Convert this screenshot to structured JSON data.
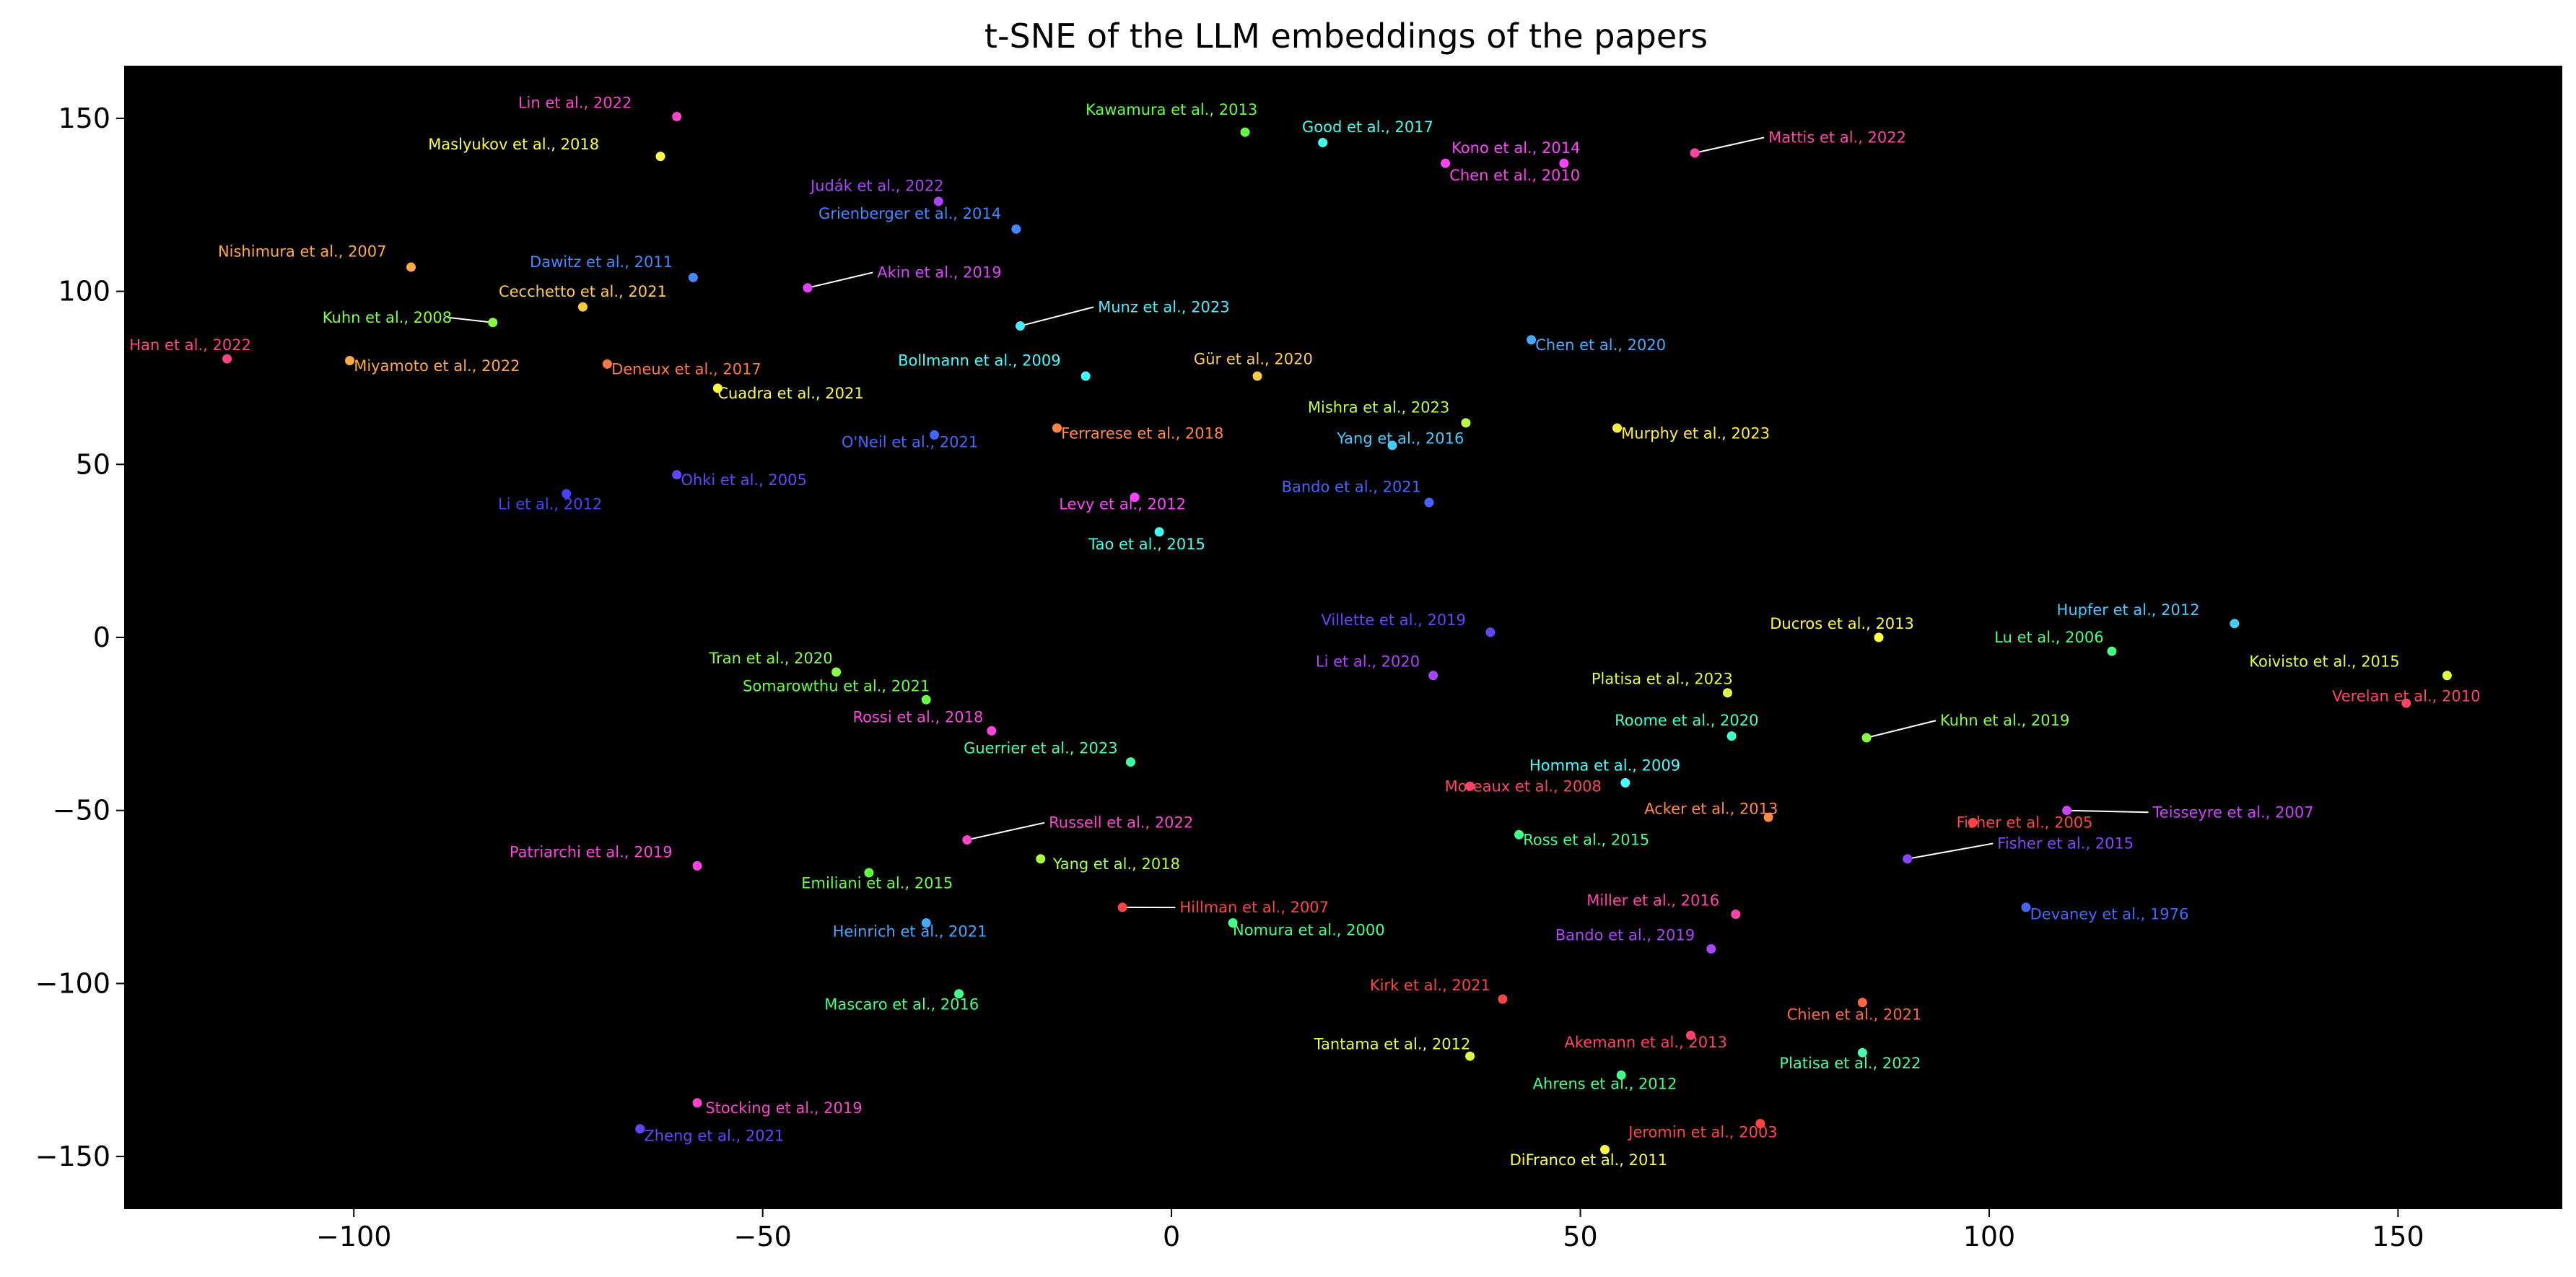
{
  "chart_data": {
    "type": "scatter",
    "title": "t-SNE of the LLM embeddings of the papers",
    "xlabel": "",
    "ylabel": "",
    "xlim": [
      -128,
      170
    ],
    "ylim": [
      -165,
      165
    ],
    "xticks": [
      -100,
      -50,
      0,
      50,
      100,
      150
    ],
    "yticks": [
      150,
      100,
      50,
      0,
      -50,
      -100,
      -150
    ],
    "xtick_labels": [
      "−100",
      "−50",
      "0",
      "50",
      "100",
      "150"
    ],
    "ytick_labels": [
      "150",
      "100",
      "50",
      "0",
      "−50",
      "−100",
      "−150"
    ],
    "background": "#000000",
    "grid": false,
    "points": [
      {
        "label": "Lin et al., 2022",
        "x": -60.5,
        "y": 150.5,
        "color": "#ff44cc",
        "lx": -66,
        "ly": 153,
        "anchor": "end"
      },
      {
        "label": "Maslyukov et al., 2018",
        "x": -62.5,
        "y": 139,
        "color": "#ffff44",
        "lx": -70,
        "ly": 141,
        "anchor": "end"
      },
      {
        "label": "Kawamura et al., 2013",
        "x": 9,
        "y": 146,
        "color": "#66ff44",
        "lx": 0,
        "ly": 151,
        "anchor": "middle"
      },
      {
        "label": "Good et al., 2017",
        "x": 18.5,
        "y": 143,
        "color": "#44ffee",
        "lx": 24,
        "ly": 146,
        "anchor": "middle"
      },
      {
        "label": "Kono et al., 2014",
        "x": 48,
        "y": 137,
        "color": "#ff44ff",
        "lx": 50,
        "ly": 140,
        "anchor": "end"
      },
      {
        "label": "Chen et al., 2010",
        "x": 33.5,
        "y": 137,
        "color": "#ff44ee",
        "lx": 34,
        "ly": 132,
        "anchor": "start"
      },
      {
        "label": "Mattis et al., 2022",
        "x": 64,
        "y": 140,
        "color": "#ff44aa",
        "lx": 73,
        "ly": 143,
        "anchor": "start",
        "leader": true
      },
      {
        "label": "Judák et al., 2022",
        "x": -28.5,
        "y": 126,
        "color": "#aa44ff",
        "lx": -36,
        "ly": 129,
        "anchor": "middle"
      },
      {
        "label": "Grienberger et al., 2014",
        "x": -19,
        "y": 118,
        "color": "#4488ff",
        "lx": -32,
        "ly": 121,
        "anchor": "middle"
      },
      {
        "label": "Nishimura et al., 2007",
        "x": -93,
        "y": 107,
        "color": "#ffaa44",
        "lx": -96,
        "ly": 110,
        "anchor": "end"
      },
      {
        "label": "Dawitz et al., 2011",
        "x": -58.5,
        "y": 104,
        "color": "#4488ff",
        "lx": -61,
        "ly": 107,
        "anchor": "end"
      },
      {
        "label": "Akin et al., 2019",
        "x": -44.5,
        "y": 101,
        "color": "#dd44ff",
        "lx": -36,
        "ly": 104,
        "anchor": "start",
        "leader": true
      },
      {
        "label": "Cecchetto et al., 2021",
        "x": -72,
        "y": 95.5,
        "color": "#ffcc44",
        "lx": -72,
        "ly": 98.5,
        "anchor": "middle"
      },
      {
        "label": "Kuhn et al., 2008",
        "x": -83,
        "y": 91,
        "color": "#88ff44",
        "lx": -88,
        "ly": 91,
        "anchor": "end",
        "leader": true
      },
      {
        "label": "Munz et al., 2023",
        "x": -18.5,
        "y": 90,
        "color": "#44eeff",
        "lx": -9,
        "ly": 94,
        "anchor": "start",
        "leader": true
      },
      {
        "label": "Han et al., 2022",
        "x": -115.5,
        "y": 80.5,
        "color": "#ff4488",
        "lx": -120,
        "ly": 83,
        "anchor": "middle"
      },
      {
        "label": "Miyamoto et al., 2022",
        "x": -100.5,
        "y": 80,
        "color": "#ffaa44",
        "lx": -100,
        "ly": 77,
        "anchor": "start"
      },
      {
        "label": "Deneux et al., 2017",
        "x": -69,
        "y": 79,
        "color": "#ff7744",
        "lx": -68.5,
        "ly": 76,
        "anchor": "start"
      },
      {
        "label": "Chen et al., 2020",
        "x": 44,
        "y": 86,
        "color": "#44aaff",
        "lx": 44.5,
        "ly": 83,
        "anchor": "start"
      },
      {
        "label": "Bollmann et al., 2009",
        "x": -10.5,
        "y": 75.5,
        "color": "#44ffff",
        "lx": -23.5,
        "ly": 78.5,
        "anchor": "middle"
      },
      {
        "label": "Gür et al., 2020",
        "x": 10.5,
        "y": 75.5,
        "color": "#ffcc44",
        "lx": 10,
        "ly": 79,
        "anchor": "middle"
      },
      {
        "label": "Cuadra et al., 2021",
        "x": -55.5,
        "y": 72,
        "color": "#ffff44",
        "lx": -55.5,
        "ly": 69,
        "anchor": "start"
      },
      {
        "label": "Mishra et al., 2023",
        "x": 36,
        "y": 62,
        "color": "#bbff44",
        "lx": 34,
        "ly": 65,
        "anchor": "end"
      },
      {
        "label": "Murphy et al., 2023",
        "x": 54.5,
        "y": 60.5,
        "color": "#ffee44",
        "lx": 55,
        "ly": 57.5,
        "anchor": "start"
      },
      {
        "label": "Ferrarese et al., 2018",
        "x": -14,
        "y": 60.5,
        "color": "#ff8844",
        "lx": -13.5,
        "ly": 57.5,
        "anchor": "start"
      },
      {
        "label": "O'Neil et al., 2021",
        "x": -29,
        "y": 58.5,
        "color": "#4466ff",
        "lx": -32,
        "ly": 55,
        "anchor": "middle"
      },
      {
        "label": "Yang et al., 2016",
        "x": 27,
        "y": 55.5,
        "color": "#44ccff",
        "lx": 28,
        "ly": 56,
        "anchor": "middle"
      },
      {
        "label": "Ohki et al., 2005",
        "x": -60.5,
        "y": 47,
        "color": "#6644ff",
        "lx": -60,
        "ly": 44,
        "anchor": "start"
      },
      {
        "label": "Li et al., 2012",
        "x": -74,
        "y": 41.5,
        "color": "#4444ff",
        "lx": -76,
        "ly": 37,
        "anchor": "middle"
      },
      {
        "label": "Levy et al., 2012",
        "x": -4.5,
        "y": 40.5,
        "color": "#ff44ff",
        "lx": -6,
        "ly": 37,
        "anchor": "middle"
      },
      {
        "label": "Bando et al., 2021",
        "x": 31.5,
        "y": 39,
        "color": "#4466ff",
        "lx": 22,
        "ly": 42,
        "anchor": "middle"
      },
      {
        "label": "Tao et al., 2015",
        "x": -1.5,
        "y": 30.5,
        "color": "#44ffee",
        "lx": -3,
        "ly": 25.5,
        "anchor": "middle"
      },
      {
        "label": "Villette et al., 2019",
        "x": 39,
        "y": 1.5,
        "color": "#6644ff",
        "lx": 36,
        "ly": 3.5,
        "anchor": "end"
      },
      {
        "label": "Hupfer et al., 2012",
        "x": 130,
        "y": 4,
        "color": "#44ccff",
        "lx": 117,
        "ly": 6.5,
        "anchor": "middle"
      },
      {
        "label": "Ducros et al., 2013",
        "x": 86.5,
        "y": 0,
        "color": "#ffff44",
        "lx": 82,
        "ly": 2.5,
        "anchor": "middle"
      },
      {
        "label": "Lu et al., 2006",
        "x": 115,
        "y": -4,
        "color": "#44ff88",
        "lx": 114,
        "ly": -1.5,
        "anchor": "end"
      },
      {
        "label": "Koivisto et al., 2015",
        "x": 156,
        "y": -11,
        "color": "#ddff44",
        "lx": 141,
        "ly": -8.5,
        "anchor": "middle"
      },
      {
        "label": "Tran et al., 2020",
        "x": -41,
        "y": -10,
        "color": "#88ff44",
        "lx": -49,
        "ly": -7.5,
        "anchor": "middle"
      },
      {
        "label": "Li et al., 2020",
        "x": 32,
        "y": -11,
        "color": "#aa44ff",
        "lx": 24,
        "ly": -8.5,
        "anchor": "middle"
      },
      {
        "label": "Platisa et al., 2023",
        "x": 68,
        "y": -16,
        "color": "#ddff44",
        "lx": 60,
        "ly": -13.5,
        "anchor": "middle"
      },
      {
        "label": "Somarowthu et al., 2021",
        "x": -30,
        "y": -18,
        "color": "#66ff44",
        "lx": -41,
        "ly": -15.5,
        "anchor": "middle"
      },
      {
        "label": "Verelan et al., 2010",
        "x": 151,
        "y": -19,
        "color": "#ff4466",
        "lx": 151,
        "ly": -18.5,
        "anchor": "middle"
      },
      {
        "label": "Rossi et al., 2018",
        "x": -22,
        "y": -27,
        "color": "#ff44dd",
        "lx": -31,
        "ly": -24.5,
        "anchor": "middle"
      },
      {
        "label": "Roome et al., 2020",
        "x": 68.5,
        "y": -28.5,
        "color": "#44ffcc",
        "lx": 63,
        "ly": -25.5,
        "anchor": "middle"
      },
      {
        "label": "Kuhn et al., 2019",
        "x": 85,
        "y": -29,
        "color": "#88ff44",
        "lx": 94,
        "ly": -25.5,
        "anchor": "start",
        "leader": true
      },
      {
        "label": "Guerrier et al., 2023",
        "x": -5,
        "y": -36,
        "color": "#44ffaa",
        "lx": -16,
        "ly": -33.5,
        "anchor": "middle"
      },
      {
        "label": "Homma et al., 2009",
        "x": 55.5,
        "y": -42,
        "color": "#44ffff",
        "lx": 53,
        "ly": -38.5,
        "anchor": "middle"
      },
      {
        "label": "Moreaux et al., 2008",
        "x": 36.5,
        "y": -43,
        "color": "#ff4466",
        "lx": 43,
        "ly": -44.5,
        "anchor": "middle"
      },
      {
        "label": "Teisseyre et al., 2007",
        "x": 109.5,
        "y": -50,
        "color": "#cc44ff",
        "lx": 120,
        "ly": -52,
        "anchor": "start",
        "leader": true
      },
      {
        "label": "Acker et al., 2013",
        "x": 73,
        "y": -52,
        "color": "#ff8844",
        "lx": 66,
        "ly": -51,
        "anchor": "middle"
      },
      {
        "label": "Fisher et al., 2005",
        "x": 98,
        "y": -53.5,
        "color": "#ff4444",
        "lx": 96,
        "ly": -55,
        "anchor": "start"
      },
      {
        "label": "Russell et al., 2022",
        "x": -25,
        "y": -58.5,
        "color": "#ff44cc",
        "lx": -15,
        "ly": -55,
        "anchor": "start",
        "leader": true
      },
      {
        "label": "Ross et al., 2015",
        "x": 42.5,
        "y": -57,
        "color": "#44ff88",
        "lx": 43,
        "ly": -60,
        "anchor": "start"
      },
      {
        "label": "Fisher et al., 2015",
        "x": 90,
        "y": -64,
        "color": "#8844ff",
        "lx": 101,
        "ly": -61,
        "anchor": "start",
        "leader": true
      },
      {
        "label": "Patriarchi et al., 2019",
        "x": -58,
        "y": -66,
        "color": "#ff44dd",
        "lx": -71,
        "ly": -63.5,
        "anchor": "middle"
      },
      {
        "label": "Yang et al., 2018",
        "x": -16,
        "y": -64,
        "color": "#aaff44",
        "lx": -14.5,
        "ly": -67,
        "anchor": "start"
      },
      {
        "label": "Emiliani et al., 2015",
        "x": -37,
        "y": -68,
        "color": "#66ff44",
        "lx": -36,
        "ly": -72.5,
        "anchor": "middle"
      },
      {
        "label": "Hillman et al., 2007",
        "x": -6,
        "y": -78,
        "color": "#ff4444",
        "lx": 1,
        "ly": -79.5,
        "anchor": "start",
        "leader": true
      },
      {
        "label": "Miller et al., 2016",
        "x": 69,
        "y": -80,
        "color": "#ff44aa",
        "lx": 67,
        "ly": -77.5,
        "anchor": "end"
      },
      {
        "label": "Devaney et al., 1976",
        "x": 104.5,
        "y": -78,
        "color": "#4466ff",
        "lx": 105,
        "ly": -81.5,
        "anchor": "start"
      },
      {
        "label": "Heinrich et al., 2021",
        "x": -30,
        "y": -82.5,
        "color": "#44aaff",
        "lx": -32,
        "ly": -86.5,
        "anchor": "middle"
      },
      {
        "label": "Nomura et al., 2000",
        "x": 7.5,
        "y": -82.5,
        "color": "#44ff88",
        "lx": 7.5,
        "ly": -86,
        "anchor": "start"
      },
      {
        "label": "Bando et al., 2019",
        "x": 66,
        "y": -90,
        "color": "#aa44ff",
        "lx": 64,
        "ly": -87.5,
        "anchor": "end"
      },
      {
        "label": "Mascaro et al., 2016",
        "x": -26,
        "y": -103,
        "color": "#44ff88",
        "lx": -33,
        "ly": -107.5,
        "anchor": "middle"
      },
      {
        "label": "Kirk et al., 2021",
        "x": 40.5,
        "y": -104.5,
        "color": "#ff4444",
        "lx": 39,
        "ly": -102,
        "anchor": "end"
      },
      {
        "label": "Chien et al., 2021",
        "x": 84.5,
        "y": -105.5,
        "color": "#ff6644",
        "lx": 83.5,
        "ly": -110.5,
        "anchor": "middle"
      },
      {
        "label": "Akemann et al., 2013",
        "x": 63.5,
        "y": -115,
        "color": "#ff4466",
        "lx": 58,
        "ly": -118.5,
        "anchor": "middle"
      },
      {
        "label": "Platisa et al., 2022",
        "x": 84.5,
        "y": -120,
        "color": "#44ffaa",
        "lx": 83,
        "ly": -124.5,
        "anchor": "middle"
      },
      {
        "label": "Tantama et al., 2012",
        "x": 36.5,
        "y": -121,
        "color": "#ddff44",
        "lx": 27,
        "ly": -119,
        "anchor": "middle"
      },
      {
        "label": "Ahrens et al., 2012",
        "x": 55,
        "y": -126.5,
        "color": "#44ff88",
        "lx": 53,
        "ly": -130.5,
        "anchor": "middle"
      },
      {
        "label": "Stocking et al., 2019",
        "x": -58,
        "y": -134.5,
        "color": "#ff44cc",
        "lx": -57,
        "ly": -137.5,
        "anchor": "start"
      },
      {
        "label": "Jeromin et al., 2003",
        "x": 72,
        "y": -140.5,
        "color": "#ff4444",
        "lx": 65,
        "ly": -144.5,
        "anchor": "middle"
      },
      {
        "label": "Zheng et al., 2021",
        "x": -65,
        "y": -142,
        "color": "#6644ff",
        "lx": -64.5,
        "ly": -145.5,
        "anchor": "start"
      },
      {
        "label": "DiFranco et al., 2011",
        "x": 53,
        "y": -148,
        "color": "#ffff44",
        "lx": 51,
        "ly": -152.5,
        "anchor": "middle"
      }
    ]
  }
}
